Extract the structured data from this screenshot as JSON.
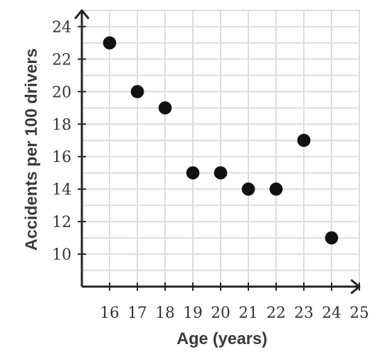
{
  "chart_data": {
    "type": "scatter",
    "title": "",
    "xlabel": "Age (years)",
    "ylabel": "Accidents per 100 drivers",
    "xlim": [
      15,
      25
    ],
    "ylim": [
      8,
      25
    ],
    "grid": true,
    "x_ticks": [
      16,
      17,
      18,
      19,
      20,
      21,
      22,
      23,
      24,
      25
    ],
    "y_ticks": [
      10,
      12,
      14,
      16,
      18,
      20,
      22,
      24
    ],
    "x_tick_labels": [
      "16",
      "17",
      "18",
      "19",
      "20",
      "21",
      "22",
      "23",
      "24",
      "25"
    ],
    "y_tick_labels": [
      "10",
      "12",
      "14",
      "16",
      "18",
      "20",
      "22",
      "24"
    ],
    "series": [
      {
        "x": [
          16,
          17,
          18,
          19,
          20,
          21,
          22,
          23,
          24
        ],
        "y": [
          23,
          20,
          19,
          15,
          15,
          14,
          14,
          17,
          11
        ]
      }
    ]
  },
  "colors": {
    "grid": "#dddddd",
    "axis": "#222222",
    "point": "#111111"
  }
}
